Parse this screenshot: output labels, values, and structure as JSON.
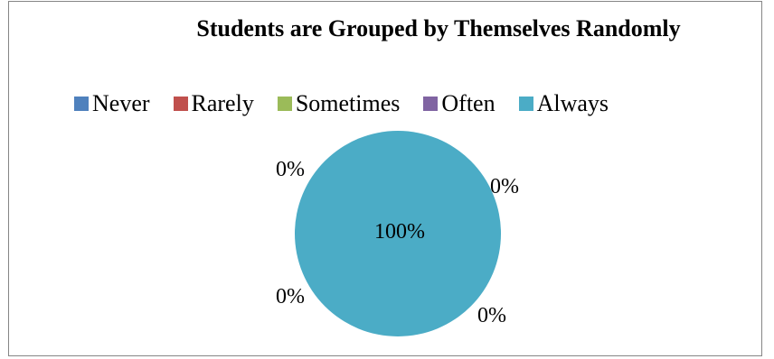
{
  "chart_data": {
    "type": "pie",
    "title": "Students are Grouped by Themselves Randomly",
    "categories": [
      "Never",
      "Rarely",
      "Sometimes",
      "Often",
      "Always"
    ],
    "values": [
      0,
      0,
      0,
      0,
      100
    ],
    "data_labels": [
      "0%",
      "0%",
      "0%",
      "0%",
      "100%"
    ],
    "colors": [
      "#4F81BD",
      "#C0504D",
      "#9BBB59",
      "#8064A2",
      "#4BACC6"
    ],
    "legend_position": "top"
  }
}
